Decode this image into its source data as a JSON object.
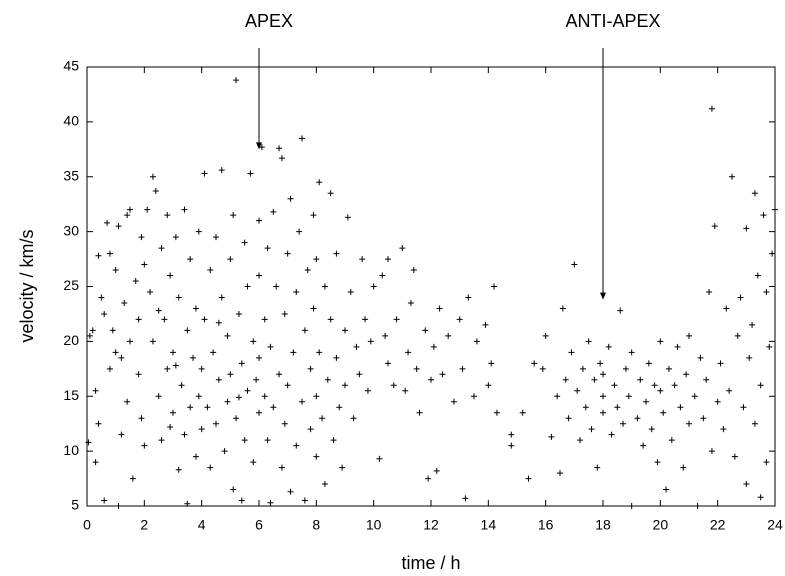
{
  "chart_data": {
    "type": "scatter",
    "xlabel": "time / h",
    "ylabel": "velocity / km/s",
    "xlim": [
      0,
      24
    ],
    "ylim": [
      5,
      45
    ],
    "xticks": [
      0,
      2,
      4,
      6,
      8,
      10,
      12,
      14,
      16,
      18,
      20,
      22,
      24
    ],
    "yticks": [
      5,
      10,
      15,
      20,
      25,
      30,
      35,
      40,
      45
    ],
    "color": "#000000",
    "annotations": [
      {
        "text": "APEX",
        "x": 6,
        "y": 37.5
      },
      {
        "text": "ANTI-APEX",
        "x": 18,
        "y": 23.8
      }
    ],
    "x": [
      0.1,
      0.2,
      0.3,
      0.3,
      0.4,
      0.5,
      0.6,
      0.6,
      0.7,
      0.8,
      0.8,
      0.9,
      1,
      1,
      1.1,
      1.2,
      1.2,
      1.3,
      1.4,
      1.4,
      1.5,
      1.5,
      1.6,
      1.7,
      1.8,
      1.8,
      1.9,
      1.9,
      2,
      2,
      0.05,
      1.1,
      0.4,
      2.1,
      2.2,
      2.3,
      2.3,
      2.4,
      2.5,
      2.6,
      2.6,
      2.7,
      2.8,
      2.8,
      2.9,
      3,
      3,
      3.1,
      3.2,
      3.2,
      3.3,
      3.4,
      3.4,
      3.5,
      3.6,
      3.6,
      3.7,
      3.8,
      3.8,
      3.9,
      3.9,
      4,
      4,
      2.5,
      3.5,
      3.1,
      2.9,
      4.1,
      4.1,
      4.2,
      4.3,
      4.3,
      4.4,
      4.5,
      4.5,
      4.6,
      4.7,
      4.7,
      4.8,
      4.9,
      4.9,
      5,
      5,
      5.1,
      5.1,
      5.2,
      5.2,
      5.3,
      5.4,
      5.5,
      5.5,
      5.6,
      5.6,
      5.7,
      5.8,
      5.8,
      5.9,
      6,
      6,
      6,
      6,
      5.4,
      4.6,
      5.3,
      6.1,
      6.2,
      6.2,
      6.3,
      6.3,
      6.4,
      6.5,
      6.5,
      6.6,
      6.7,
      6.7,
      6.8,
      6.8,
      6.9,
      6.9,
      7,
      7,
      7.1,
      7.2,
      7.3,
      7.3,
      7.4,
      7.5,
      7.5,
      7.6,
      7.6,
      7.7,
      7.8,
      7.8,
      7.9,
      8,
      8,
      8,
      7.1,
      6.4,
      7.9,
      8.1,
      8.1,
      8.2,
      8.3,
      8.3,
      8.4,
      8.5,
      8.5,
      8.6,
      8.7,
      8.7,
      8.8,
      8.9,
      9,
      9,
      9.1,
      9.2,
      9.3,
      9.4,
      9.5,
      9.6,
      9.7,
      9.8,
      9.9,
      10,
      10.2,
      10.3,
      10.4,
      10.5,
      10.5,
      10.7,
      10.8,
      11,
      11.1,
      11.2,
      11.3,
      11.4,
      11.5,
      11.6,
      11.8,
      11.9,
      12,
      12.1,
      12.2,
      12.3,
      12.4,
      12.6,
      12.8,
      13,
      13.1,
      13.2,
      13.3,
      13.5,
      13.6,
      13.9,
      14,
      14.1,
      14.2,
      14.3,
      14.8,
      14.8,
      15.2,
      15.4,
      15.6,
      15.9,
      16,
      16.2,
      16.4,
      16.5,
      16.6,
      16.7,
      16.8,
      16.9,
      17,
      17.1,
      17.2,
      17.3,
      17.4,
      17.5,
      17.6,
      17.7,
      17.8,
      17.9,
      18,
      18,
      18,
      18.2,
      18.3,
      18.4,
      18.5,
      18.6,
      18.7,
      18.8,
      18.9,
      19,
      19,
      19.2,
      19.3,
      19.4,
      19.5,
      19.6,
      19.7,
      19.8,
      19.9,
      20,
      20,
      20.1,
      20.2,
      20.3,
      20.4,
      20.5,
      20.6,
      20.7,
      20.8,
      20.9,
      21,
      21,
      21.2,
      21.3,
      21.4,
      21.5,
      21.6,
      21.7,
      21.8,
      21.9,
      22,
      21.8,
      22.1,
      22.2,
      22.3,
      22.4,
      22.5,
      22.6,
      22.7,
      22.8,
      22.9,
      23,
      23,
      23.1,
      23.2,
      23.3,
      23.3,
      23.4,
      23.5,
      23.6,
      23.7,
      23.8,
      23.9,
      24,
      23.5,
      23.7
    ],
    "values": [
      20.5,
      21,
      15.5,
      9,
      27.8,
      24,
      22.5,
      5.5,
      30.8,
      28,
      17.5,
      21,
      19,
      26.5,
      30.5,
      18.5,
      11.5,
      23.5,
      31.5,
      14.5,
      32,
      20,
      7.5,
      25.5,
      22,
      17,
      29.5,
      13,
      27,
      10.5,
      10.8,
      5,
      12.5,
      32,
      24.5,
      35,
      20,
      33.7,
      15,
      28.5,
      11,
      22,
      31.5,
      17.5,
      26,
      13.5,
      19,
      29.5,
      8.3,
      24,
      16,
      32,
      11.5,
      21,
      27.5,
      14,
      18.5,
      9.5,
      23,
      30,
      15,
      12,
      17.5,
      22.8,
      5.2,
      17.8,
      12.2,
      35.3,
      22,
      14,
      26.5,
      8.5,
      19,
      29.5,
      12.5,
      16.5,
      35.6,
      24,
      10,
      20.5,
      14.5,
      27.5,
      17,
      31.5,
      6.5,
      43.8,
      13,
      22.5,
      18,
      29,
      11,
      25,
      15.5,
      35.3,
      20,
      9,
      16.5,
      31,
      13.5,
      26,
      18.5,
      5.5,
      21.7,
      14.9,
      37.7,
      22,
      15,
      28.5,
      11,
      19.5,
      31.8,
      14,
      25,
      37.6,
      17,
      36.7,
      8.5,
      22.5,
      12.5,
      28,
      16,
      6.3,
      19,
      24.5,
      10.5,
      30,
      38.5,
      14.5,
      21,
      5.5,
      26.5,
      17.5,
      12,
      23,
      9.5,
      15,
      27.5,
      33,
      5.3,
      31.5,
      34.5,
      19,
      13,
      25,
      7,
      16.5,
      33.5,
      22,
      11,
      28,
      18.5,
      14,
      8.5,
      21,
      16,
      31.3,
      24.5,
      13,
      19.5,
      17,
      27.5,
      22,
      15.5,
      20,
      25,
      9.3,
      26,
      20.5,
      18,
      27.5,
      16,
      22,
      28.5,
      15.5,
      19,
      23.5,
      26.5,
      17.5,
      13.5,
      21,
      7.5,
      16.5,
      19.5,
      8.2,
      23,
      17,
      20.5,
      14.5,
      22,
      17.5,
      5.7,
      24,
      15,
      20,
      21.5,
      16,
      18,
      25,
      13.5,
      11.5,
      10.5,
      13.5,
      7.5,
      18,
      17.5,
      20.5,
      11.3,
      15,
      8,
      23,
      16.5,
      13,
      19,
      27,
      15.5,
      11,
      17.5,
      14,
      20,
      12,
      16.5,
      8.5,
      18,
      15,
      13.5,
      17,
      19.5,
      11.5,
      16,
      14,
      22.8,
      12.5,
      17.5,
      15,
      5,
      19,
      13,
      16.5,
      10.5,
      14.5,
      18,
      12,
      16,
      9,
      15.5,
      20,
      13.5,
      6.5,
      17.5,
      11,
      16,
      19.5,
      14,
      8.5,
      17,
      12.5,
      20.5,
      15,
      5,
      18.5,
      13,
      16.5,
      24.5,
      41.2,
      30.5,
      14.5,
      10,
      18,
      12,
      23,
      15.5,
      35,
      9.5,
      20.5,
      24,
      14,
      30.3,
      7,
      18.5,
      21.5,
      33.5,
      12.5,
      26,
      16,
      31.5,
      24.5,
      19.5,
      28,
      32,
      5.8,
      9
    ]
  }
}
